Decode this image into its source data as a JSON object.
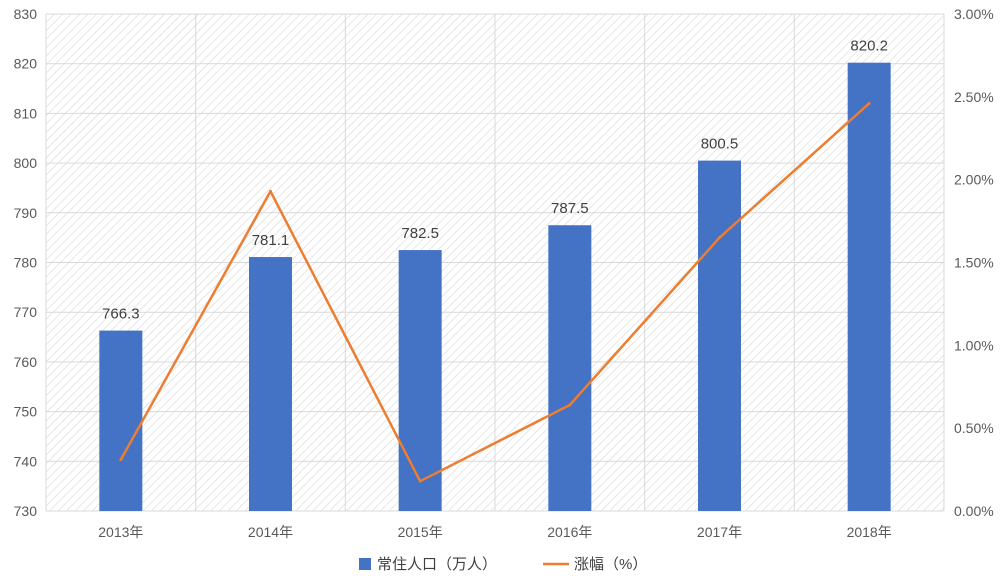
{
  "chart_data": {
    "type": "bar",
    "categories": [
      "2013年",
      "2014年",
      "2015年",
      "2016年",
      "2017年",
      "2018年"
    ],
    "series": [
      {
        "name": "常住人口（万人）",
        "type": "bar",
        "axis": "left",
        "color": "#4472C4",
        "values": [
          766.3,
          781.1,
          782.5,
          787.5,
          800.5,
          820.2
        ],
        "data_labels": [
          "766.3",
          "781.1",
          "782.5",
          "787.5",
          "800.5",
          "820.2"
        ]
      },
      {
        "name": "涨幅（%）",
        "type": "line",
        "axis": "right",
        "color": "#ED7D31",
        "values": [
          0.31,
          1.93,
          0.18,
          0.64,
          1.65,
          2.46
        ]
      }
    ],
    "ylim": [
      730,
      830
    ],
    "yticks": [
      "730",
      "740",
      "750",
      "760",
      "770",
      "780",
      "790",
      "800",
      "810",
      "820",
      "830"
    ],
    "y2lim": [
      0,
      3
    ],
    "y2ticks": [
      "0.00%",
      "0.50%",
      "1.00%",
      "1.50%",
      "2.00%",
      "2.50%",
      "3.00%"
    ],
    "legend_position": "bottom",
    "grid": true
  }
}
